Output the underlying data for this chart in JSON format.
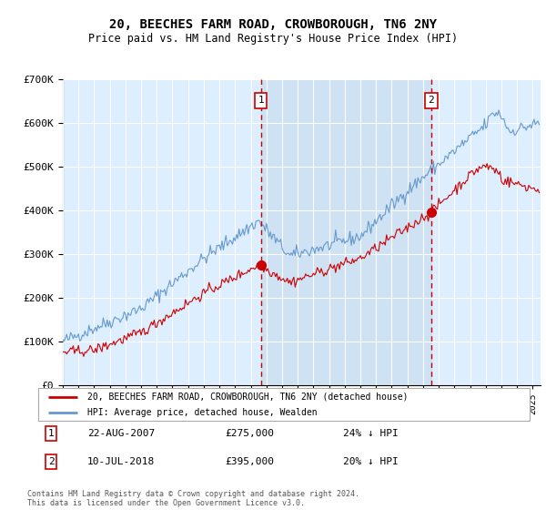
{
  "title": "20, BEECHES FARM ROAD, CROWBOROUGH, TN6 2NY",
  "subtitle": "Price paid vs. HM Land Registry's House Price Index (HPI)",
  "sale1_label": "22-AUG-2007",
  "sale1_price": 275000,
  "sale1_year": 2007.646,
  "sale1_hpi_diff": "24% ↓ HPI",
  "sale2_label": "10-JUL-2018",
  "sale2_price": 395000,
  "sale2_year": 2018.521,
  "sale2_hpi_diff": "20% ↓ HPI",
  "legend_line1": "20, BEECHES FARM ROAD, CROWBOROUGH, TN6 2NY (detached house)",
  "legend_line2": "HPI: Average price, detached house, Wealden",
  "footer": "Contains HM Land Registry data © Crown copyright and database right 2024.\nThis data is licensed under the Open Government Licence v3.0.",
  "hpi_color": "#6699cc",
  "price_color": "#cc0000",
  "vline_color": "#cc0000",
  "plot_bg_color": "#ddeeff",
  "shade_color": "#c8ddf0",
  "ylim_max": 700000,
  "ylim_min": 0,
  "xlim_min": 1995,
  "xlim_max": 2025.5
}
